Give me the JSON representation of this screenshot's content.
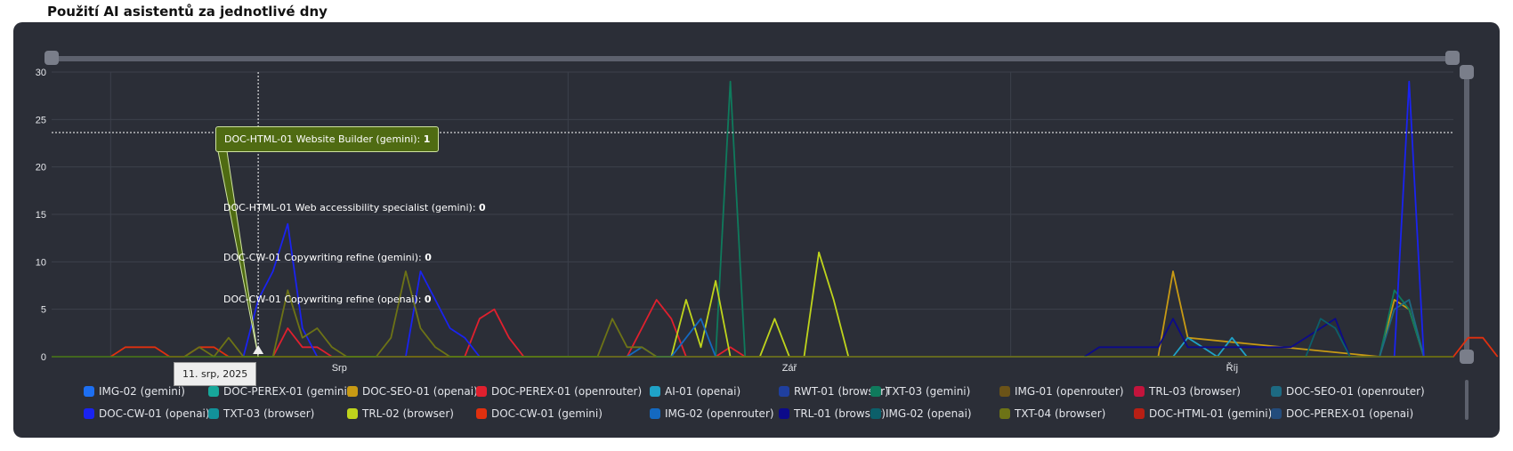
{
  "page": {
    "title": "Použití AI asistentů za jednotlivé dny"
  },
  "chart_data": {
    "type": "line",
    "ylim": [
      0,
      30
    ],
    "y_ticks": [
      "0",
      "5",
      "10",
      "15",
      "20",
      "25",
      "30"
    ],
    "x_month_labels": [
      "Srp",
      "Zář",
      "Říj"
    ],
    "x_range_days": [
      "2025-07-28",
      "2025-10-31"
    ],
    "grid": true,
    "legend_placement": "bottom",
    "series": [
      {
        "name": "IMG-02 (gemini)",
        "color": "#1d6ff2",
        "values": []
      },
      {
        "name": "DOC-PEREX-01 (gemini)",
        "color": "#17a79a",
        "values": []
      },
      {
        "name": "DOC-SEO-01 (openai)",
        "color": "#c89a14",
        "values": [
          [
            75,
            0
          ],
          [
            76,
            9
          ],
          [
            77,
            2
          ],
          [
            90,
            0
          ],
          [
            91,
            6
          ],
          [
            92,
            5
          ],
          [
            93,
            0
          ]
        ]
      },
      {
        "name": "DOC-PEREX-01 (openrouter)",
        "color": "#e0202e",
        "values": [
          [
            15,
            0
          ],
          [
            16,
            3
          ],
          [
            17,
            1
          ],
          [
            18,
            1
          ],
          [
            19,
            0
          ],
          [
            28,
            0
          ],
          [
            29,
            4
          ],
          [
            30,
            5
          ],
          [
            31,
            2
          ],
          [
            32,
            0
          ],
          [
            39,
            0
          ],
          [
            40,
            3
          ],
          [
            41,
            6
          ],
          [
            42,
            4
          ],
          [
            43,
            0
          ],
          [
            45,
            0
          ],
          [
            46,
            1
          ],
          [
            47,
            0
          ]
        ]
      },
      {
        "name": "AI-01 (openai)",
        "color": "#1fa2c7",
        "values": [
          [
            76,
            0
          ],
          [
            77,
            2
          ],
          [
            78,
            1
          ],
          [
            79,
            0
          ],
          [
            80,
            2
          ],
          [
            81,
            0
          ]
        ]
      },
      {
        "name": "RWT-01 (browser)",
        "color": "#1f3f9e",
        "values": []
      },
      {
        "name": "TXT-03 (gemini)",
        "color": "#0f7a5c",
        "values": [
          [
            45,
            0
          ],
          [
            46,
            29
          ],
          [
            47,
            0
          ],
          [
            90,
            0
          ],
          [
            91,
            7
          ],
          [
            92,
            5
          ],
          [
            93,
            0
          ]
        ]
      },
      {
        "name": "IMG-01 (openrouter)",
        "color": "#6b5318",
        "values": []
      },
      {
        "name": "TRL-03 (browser)",
        "color": "#c3143c",
        "values": []
      },
      {
        "name": "DOC-SEO-01 (openrouter)",
        "color": "#1d6a82",
        "values": [
          [
            90,
            0
          ],
          [
            91,
            5
          ],
          [
            92,
            6
          ],
          [
            93,
            0
          ]
        ]
      },
      {
        "name": "DOC-CW-01 (openai)",
        "color": "#1a23f0",
        "values": [
          [
            13,
            0
          ],
          [
            14,
            6
          ],
          [
            15,
            9
          ],
          [
            16,
            14
          ],
          [
            17,
            3
          ],
          [
            18,
            0
          ],
          [
            24,
            0
          ],
          [
            25,
            9
          ],
          [
            26,
            6
          ],
          [
            27,
            3
          ],
          [
            28,
            2
          ],
          [
            29,
            0
          ],
          [
            91,
            0
          ],
          [
            92,
            29
          ],
          [
            93,
            0
          ]
        ]
      },
      {
        "name": "TXT-03 (browser)",
        "color": "#12929a",
        "values": []
      },
      {
        "name": "TRL-02 (browser)",
        "color": "#bfd41c",
        "values": [
          [
            42,
            0
          ],
          [
            43,
            6
          ],
          [
            44,
            1
          ],
          [
            45,
            8
          ],
          [
            46,
            0
          ],
          [
            48,
            0
          ],
          [
            49,
            4
          ],
          [
            50,
            0
          ],
          [
            51,
            0
          ],
          [
            52,
            11
          ],
          [
            53,
            6
          ],
          [
            54,
            0
          ]
        ]
      },
      {
        "name": "DOC-CW-01 (gemini)",
        "color": "#e0300f",
        "values": [
          [
            4,
            0
          ],
          [
            5,
            1
          ],
          [
            6,
            1
          ],
          [
            7,
            1
          ],
          [
            8,
            0
          ],
          [
            9,
            0
          ],
          [
            10,
            1
          ],
          [
            11,
            1
          ],
          [
            12,
            0
          ],
          [
            95,
            0
          ],
          [
            96,
            2
          ],
          [
            97,
            2
          ],
          [
            98,
            0
          ]
        ]
      },
      {
        "name": "IMG-02 (openrouter)",
        "color": "#1469c0",
        "values": [
          [
            39,
            0
          ],
          [
            40,
            1
          ],
          [
            41,
            0
          ],
          [
            42,
            0
          ],
          [
            43,
            2
          ],
          [
            44,
            4
          ],
          [
            45,
            0
          ]
        ]
      },
      {
        "name": "TRL-01 (browser)",
        "color": "#0c0a8a",
        "values": [
          [
            70,
            0
          ],
          [
            71,
            1
          ],
          [
            72,
            1
          ],
          [
            73,
            1
          ],
          [
            74,
            1
          ],
          [
            75,
            1
          ],
          [
            76,
            4
          ],
          [
            77,
            1
          ],
          [
            78,
            1
          ],
          [
            79,
            1
          ],
          [
            80,
            1
          ],
          [
            81,
            1
          ],
          [
            82,
            1
          ],
          [
            83,
            1
          ],
          [
            84,
            1
          ],
          [
            85,
            2
          ],
          [
            86,
            3
          ],
          [
            87,
            4
          ],
          [
            88,
            0
          ]
        ]
      },
      {
        "name": "IMG-02 (openai)",
        "color": "#0c5f6a",
        "values": [
          [
            85,
            0
          ],
          [
            86,
            4
          ],
          [
            87,
            3
          ],
          [
            88,
            0
          ]
        ]
      },
      {
        "name": "TXT-04 (browser)",
        "color": "#6d7316",
        "values": [
          [
            9,
            0
          ],
          [
            10,
            1
          ],
          [
            11,
            0
          ],
          [
            12,
            2
          ],
          [
            13,
            0
          ],
          [
            15,
            0
          ],
          [
            16,
            7
          ],
          [
            17,
            2
          ],
          [
            18,
            3
          ],
          [
            19,
            1
          ],
          [
            20,
            0
          ],
          [
            22,
            0
          ],
          [
            23,
            2
          ],
          [
            24,
            9
          ],
          [
            25,
            3
          ],
          [
            26,
            1
          ],
          [
            27,
            0
          ],
          [
            37,
            0
          ],
          [
            38,
            4
          ],
          [
            39,
            1
          ],
          [
            40,
            1
          ],
          [
            41,
            0
          ]
        ]
      },
      {
        "name": "DOC-HTML-01 (gemini)",
        "color": "#b81f14",
        "values": []
      },
      {
        "name": "DOC-PEREX-01 (openai)",
        "color": "#234c7c",
        "values": []
      }
    ]
  },
  "tooltip": {
    "date": "11. srp, 2025",
    "rows": [
      {
        "label": "DOC-HTML-01 Website Builder (gemini): ",
        "value": "1"
      },
      {
        "label": "DOC-HTML-01 Web accessibility specialist (gemini): ",
        "value": "0"
      },
      {
        "label": "DOC-CW-01 Copywriting refine (gemini): ",
        "value": "0"
      },
      {
        "label": "DOC-CW-01 Copywriting refine (openai): ",
        "value": "0"
      }
    ]
  },
  "colors": {
    "panel": "#2b2e37",
    "grid": "#3c404b",
    "axis_text": "#e6e8ec",
    "navigator": "#5d616d"
  }
}
